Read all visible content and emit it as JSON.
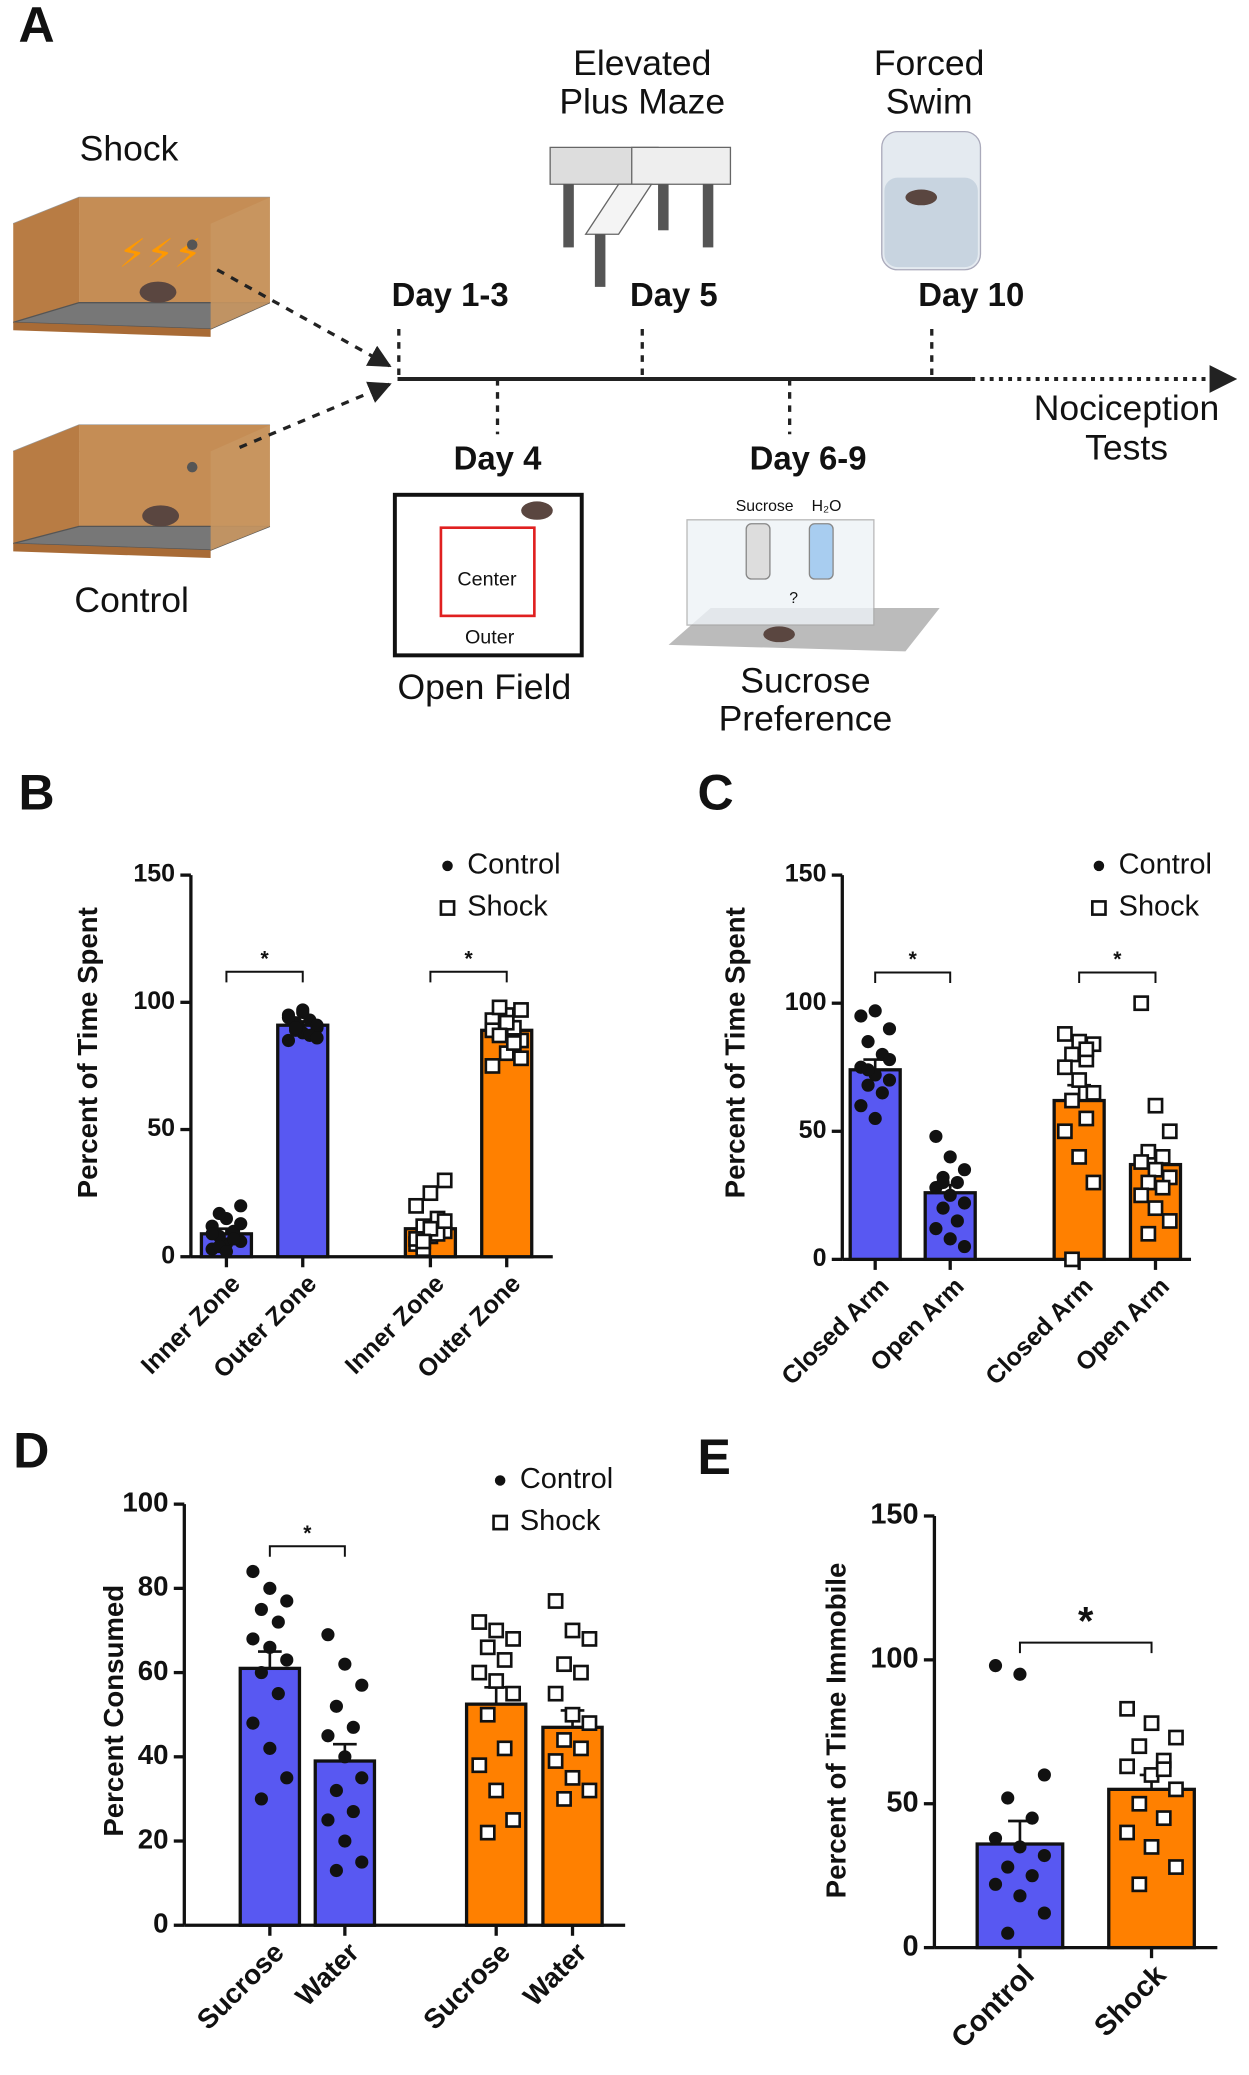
{
  "panel_a": {
    "label": "A",
    "groups": [
      "Shock",
      "Control"
    ],
    "timeline": {
      "days": [
        "Day 1-3",
        "Day 4",
        "Day 5",
        "Day 6-9",
        "Day 10"
      ],
      "end": [
        "Nociception",
        "Tests"
      ]
    },
    "tests": {
      "epm": [
        "Elevated",
        "Plus Maze"
      ],
      "fst": [
        "Forced",
        "Swim"
      ],
      "open_field": {
        "title": "Open Field",
        "center": "Center",
        "outer": "Outer"
      },
      "sucrose": {
        "title": [
          "Sucrose",
          "Preference"
        ],
        "bottles": [
          "Sucrose",
          "H₂O"
        ],
        "question": "?"
      }
    }
  },
  "chart_data": [
    {
      "type": "bar",
      "label": "B",
      "ylabel": "Percent of Time  Spent",
      "ylim": [
        0,
        150
      ],
      "yticks": [
        0,
        50,
        100,
        150
      ],
      "categories": [
        "Inner Zone",
        "Outer Zone",
        "Inner Zone",
        "Outer Zone"
      ],
      "series": [
        {
          "name": "Control",
          "color": "#5858f2",
          "marker": "circle",
          "values": [
            9,
            91,
            null,
            null
          ],
          "errors": [
            2,
            1.5,
            null,
            null
          ],
          "points": [
            [
              3,
              5,
              6,
              8,
              10,
              12,
              15,
              20,
              4,
              7,
              9,
              2,
              13,
              17
            ],
            [
              85,
              88,
              90,
              92,
              93,
              95,
              96,
              91,
              89,
              87,
              94,
              97,
              86,
              90
            ],
            null,
            null
          ]
        },
        {
          "name": "Shock",
          "color": "#ff8000",
          "marker": "square",
          "values": [
            null,
            null,
            11,
            89
          ],
          "errors": [
            null,
            null,
            2,
            2.5
          ],
          "points": [
            null,
            null,
            [
              5,
              8,
              10,
              12,
              15,
              20,
              25,
              30,
              3,
              9,
              7,
              11,
              14,
              6
            ],
            [
              75,
              80,
              85,
              88,
              90,
              93,
              95,
              97,
              98,
              84,
              89,
              92,
              78,
              87
            ]
          ]
        }
      ],
      "brackets": [
        {
          "text": "*",
          "y": 112
        },
        {
          "text": "*",
          "y": 112
        }
      ]
    },
    {
      "type": "bar",
      "label": "C",
      "ylabel": "Percent of Time  Spent",
      "ylim": [
        0,
        150
      ],
      "yticks": [
        0,
        50,
        100,
        150
      ],
      "categories": [
        "Closed Arm",
        "Open Arm",
        "Closed Arm",
        "Open Arm"
      ],
      "series": [
        {
          "name": "Control",
          "color": "#5858f2",
          "marker": "circle",
          "values": [
            74,
            26,
            null,
            null
          ],
          "errors": [
            4,
            3,
            null,
            null
          ],
          "points": [
            [
              95,
              97,
              90,
              85,
              80,
              75,
              72,
              70,
              68,
              65,
              60,
              55,
              78,
              74
            ],
            [
              48,
              40,
              35,
              32,
              30,
              28,
              25,
              22,
              20,
              15,
              12,
              8,
              5,
              30
            ],
            null,
            null
          ]
        },
        {
          "name": "Shock",
          "color": "#ff8000",
          "marker": "square",
          "values": [
            null,
            null,
            62,
            37
          ],
          "errors": [
            null,
            null,
            6,
            5
          ],
          "points": [
            null,
            null,
            [
              88,
              85,
              84,
              80,
              78,
              75,
              70,
              65,
              62,
              55,
              50,
              40,
              30,
              0,
              82
            ],
            [
              100,
              60,
              50,
              42,
              40,
              38,
              35,
              32,
              30,
              28,
              25,
              20,
              15,
              10
            ]
          ]
        }
      ],
      "brackets": [
        {
          "text": "*",
          "y": 112
        },
        {
          "text": "*",
          "y": 112
        }
      ]
    },
    {
      "type": "bar",
      "label": "D",
      "ylabel": "Percent Consumed",
      "ylim": [
        0,
        100
      ],
      "yticks": [
        0,
        20,
        40,
        60,
        80,
        100
      ],
      "categories": [
        "Sucrose",
        "Water",
        "Sucrose",
        "Water"
      ],
      "series": [
        {
          "name": "Control",
          "color": "#5858f2",
          "marker": "circle",
          "values": [
            61,
            39,
            null,
            null
          ],
          "errors": [
            4,
            4,
            null,
            null
          ],
          "points": [
            [
              84,
              80,
              77,
              75,
              72,
              68,
              66,
              63,
              60,
              55,
              48,
              42,
              35,
              30
            ],
            [
              69,
              62,
              57,
              52,
              47,
              45,
              40,
              35,
              32,
              27,
              25,
              20,
              15,
              13
            ],
            null,
            null
          ]
        },
        {
          "name": "Shock",
          "color": "#ff8000",
          "marker": "square",
          "values": [
            null,
            null,
            52.5,
            47
          ],
          "errors": [
            null,
            null,
            4,
            4
          ],
          "points": [
            null,
            null,
            [
              72,
              70,
              68,
              66,
              63,
              60,
              58,
              55,
              50,
              42,
              38,
              32,
              25,
              22
            ],
            [
              77,
              70,
              68,
              62,
              60,
              55,
              50,
              48,
              44,
              42,
              39,
              35,
              32,
              30
            ]
          ]
        }
      ],
      "brackets": [
        {
          "text": "*",
          "y": 90
        }
      ]
    },
    {
      "type": "bar",
      "label": "E",
      "ylabel": "Percent of Time Immobile",
      "ylim": [
        0,
        150
      ],
      "yticks": [
        0,
        50,
        100,
        150
      ],
      "categories": [
        "Control",
        "Shock"
      ],
      "colors": [
        "#5858f2",
        "#ff8000"
      ],
      "markers": [
        "circle",
        "square"
      ],
      "values": [
        36,
        55
      ],
      "errors": [
        8,
        5
      ],
      "points": [
        [
          98,
          95,
          60,
          52,
          45,
          38,
          35,
          32,
          28,
          25,
          22,
          18,
          12,
          5
        ],
        [
          83,
          78,
          73,
          70,
          65,
          63,
          60,
          55,
          50,
          45,
          40,
          35,
          28,
          22,
          62
        ]
      ],
      "brackets": [
        {
          "text": "*",
          "y": 106
        }
      ]
    }
  ]
}
